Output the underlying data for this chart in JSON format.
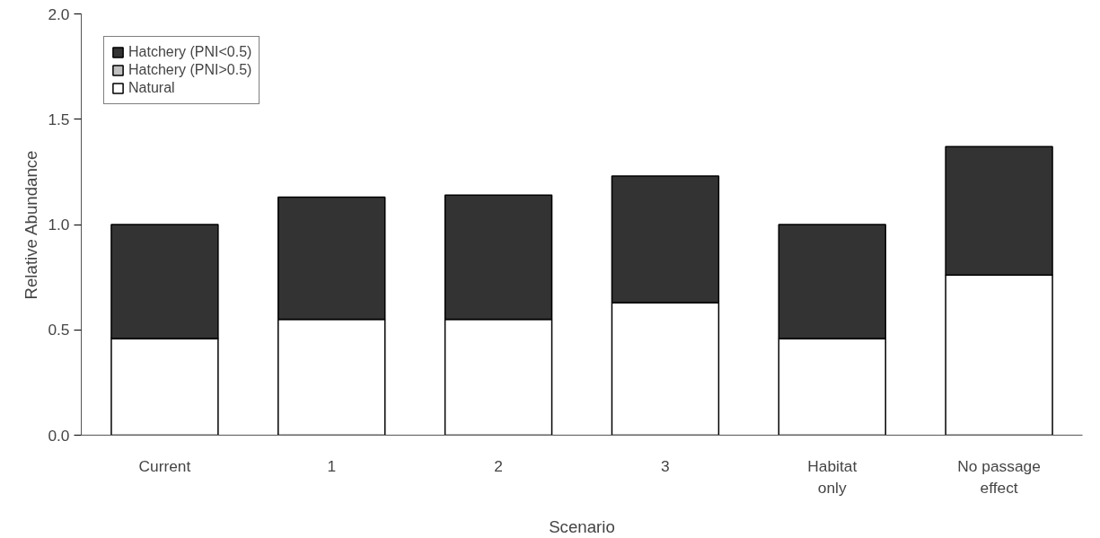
{
  "chart_data": {
    "type": "bar",
    "stacked": true,
    "xlabel": "Scenario",
    "ylabel": "Relative Abundance",
    "categories": [
      "Current",
      "1",
      "2",
      "3",
      "Habitat only",
      "No passage effect"
    ],
    "series": [
      {
        "name": "Natural",
        "color": "#ffffff",
        "values": [
          0.46,
          0.55,
          0.55,
          0.63,
          0.46,
          0.76
        ]
      },
      {
        "name": "Hatchery (PNI>0.5)",
        "color": "#c0c0c0",
        "values": [
          0,
          0,
          0,
          0,
          0,
          0
        ]
      },
      {
        "name": "Hatchery (PNI<0.5)",
        "color": "#333333",
        "values": [
          0.54,
          0.58,
          0.59,
          0.6,
          0.54,
          0.61
        ]
      }
    ],
    "ylim": [
      0,
      2.0
    ],
    "yticks": [
      {
        "value": 0,
        "label": "0.0"
      },
      0.5,
      {
        "value": 1,
        "label": "1.0"
      },
      1.5,
      {
        "value": 2,
        "label": "2.0"
      }
    ],
    "grid": false,
    "legend": "top left"
  }
}
